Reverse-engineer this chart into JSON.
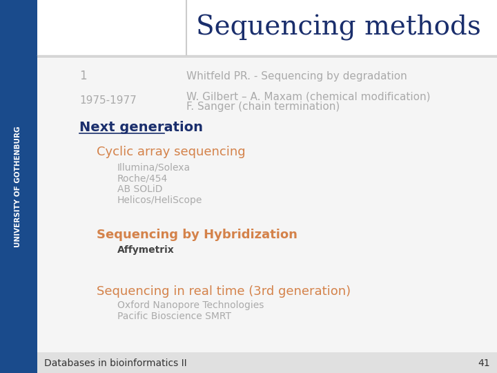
{
  "title": "Sequencing methods",
  "title_color": "#1a2e6c",
  "title_fontsize": 28,
  "slide_bg": "#e8e8e8",
  "left_bar_color": "#1a4b8c",
  "left_bar_width": 0.075,
  "row1_label": "1",
  "row1_text": "Whitfeld PR. - Sequencing by degradation",
  "row1_color": "#aaaaaa",
  "row2_label": "1975-1977",
  "row2_text1": "W. Gilbert – A. Maxam (chemical modification)",
  "row2_text2": "F. Sanger (chain termination)",
  "row2_color": "#aaaaaa",
  "next_gen_label": "Next generation",
  "next_gen_color": "#1a2e6c",
  "next_gen_fontsize": 14,
  "cyclic_label": "Cyclic array sequencing",
  "cyclic_color": "#d4824a",
  "cyclic_fontsize": 13,
  "cyclic_items": [
    "Illumina/Solexa",
    "Roche/454",
    "AB SOLiD",
    "Helicos/HeliScope"
  ],
  "cyclic_items_color": "#aaaaaa",
  "cyclic_items_fontsize": 10,
  "hybridization_label": "Sequencing by Hybridization",
  "hybridization_color": "#d4824a",
  "hybridization_fontsize": 13,
  "hybridization_items": [
    "Affymetrix"
  ],
  "hybridization_items_color": "#444444",
  "hybridization_items_fontsize": 10,
  "realtime_label": "Sequencing in real time (3rd generation)",
  "realtime_color": "#d4824a",
  "realtime_fontsize": 13,
  "realtime_items": [
    "Oxford Nanopore Technologies",
    "Pacific Bioscience SMRT"
  ],
  "realtime_items_color": "#aaaaaa",
  "realtime_items_fontsize": 10,
  "footer_text": "Databases in bioinformatics II",
  "footer_number": "41",
  "footer_color": "#333333",
  "footer_fontsize": 10,
  "univ_text": "UNIVERSITY OF GOTHENBURG",
  "univ_color": "#ffffff",
  "univ_fontsize": 7.5
}
